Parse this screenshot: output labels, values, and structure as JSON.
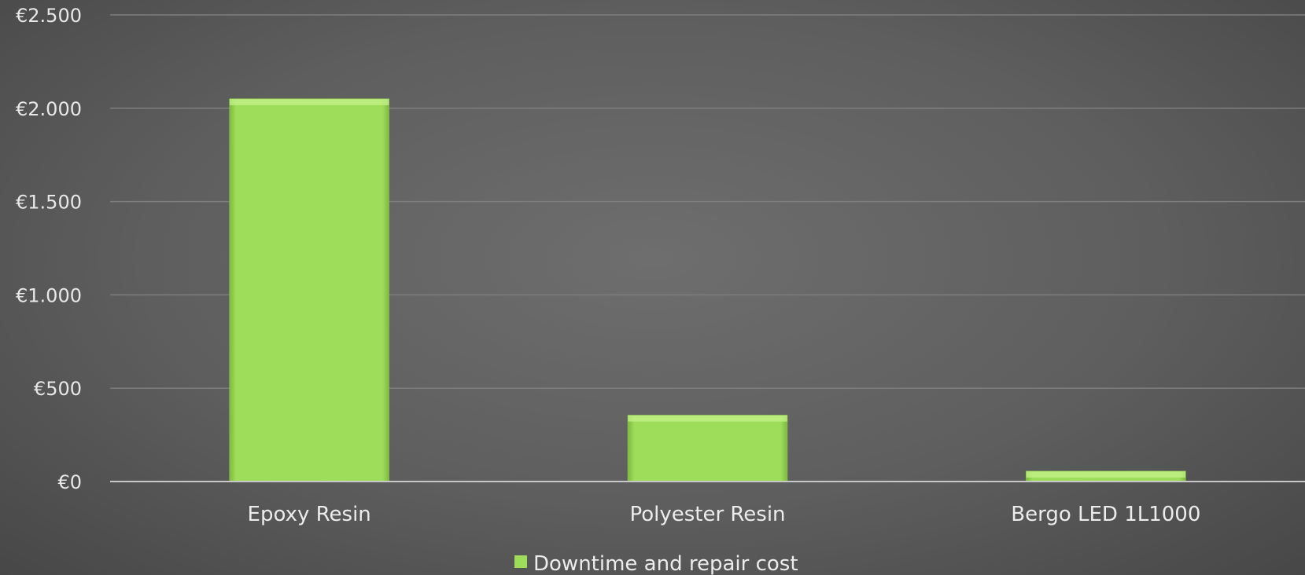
{
  "chart_data": {
    "type": "bar",
    "categories": [
      "Epoxy Resin",
      "Polyester Resin",
      "Bergo LED 1L1000"
    ],
    "series": [
      {
        "name": "Downtime and repair cost",
        "values": [
          2050,
          355,
          55
        ],
        "color": "#9ddd59"
      }
    ],
    "ylim": [
      0,
      2500
    ],
    "yticks": [
      0,
      500,
      1000,
      1500,
      2000,
      2500
    ],
    "ytick_labels": [
      "€0",
      "€500",
      "€1.000",
      "€1.500",
      "€2.000",
      "€2.500"
    ],
    "grid": true,
    "legend_position": "bottom",
    "title": "",
    "xlabel": "",
    "ylabel": ""
  },
  "colors": {
    "grid": "#7e7e7e",
    "axis": "#c8c8c8",
    "bar": "#9ddd59"
  }
}
